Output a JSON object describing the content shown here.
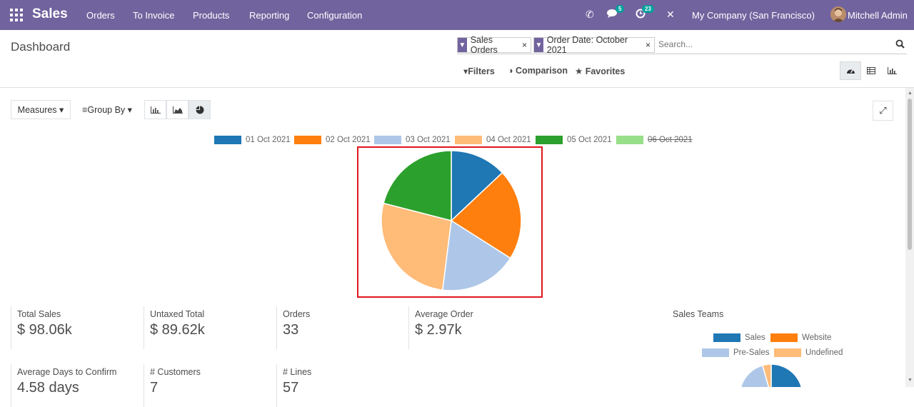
{
  "app": {
    "name": "Sales",
    "menu": [
      "Orders",
      "To Invoice",
      "Products",
      "Reporting",
      "Configuration"
    ],
    "messages_count": "5",
    "activities_count": "23",
    "company": "My Company (San Francisco)",
    "user": "Mitchell Admin"
  },
  "control_panel": {
    "title": "Dashboard",
    "facets": [
      "Sales Orders",
      "Order Date: October 2021"
    ],
    "search_placeholder": "Search...",
    "filters_label": "Filters",
    "comparison_label": "Comparison",
    "favorites_label": "Favorites"
  },
  "toolbar": {
    "measures_label": "Measures",
    "group_by_label": "Group By"
  },
  "colors": {
    "navbar": "#71639e",
    "highlight_frame": "#e0161d",
    "accent": "#00a09d"
  },
  "chart_data": [
    {
      "type": "pie",
      "legend_position": "top",
      "categories": [
        "01 Oct 2021",
        "02 Oct 2021",
        "03 Oct 2021",
        "04 Oct 2021",
        "05 Oct 2021",
        "06 Oct 2021"
      ],
      "values": [
        13,
        21,
        18,
        27,
        21,
        0
      ],
      "hidden": [
        false,
        false,
        false,
        false,
        false,
        true
      ],
      "colors": [
        "#1f77b4",
        "#ff7f0e",
        "#aec7e8",
        "#ffbb78",
        "#2ca02c",
        "#98df8a"
      ]
    },
    {
      "type": "pie",
      "title": "Sales Teams",
      "legend_position": "top",
      "categories": [
        "Sales",
        "Website",
        "Pre-Sales",
        "Undefined"
      ],
      "values": [
        36,
        0,
        28,
        3
      ],
      "colors": [
        "#1f77b4",
        "#ff7f0e",
        "#aec7e8",
        "#ffbb78"
      ]
    }
  ],
  "kpis": [
    {
      "label": "Total Sales",
      "value": "$ 98.06k"
    },
    {
      "label": "Untaxed Total",
      "value": "$ 89.62k"
    },
    {
      "label": "Orders",
      "value": "33"
    },
    {
      "label": "Average Order",
      "value": "$ 2.97k"
    },
    {
      "label": "Average Days to Confirm",
      "value": "4.58 days"
    },
    {
      "label": "# Customers",
      "value": "7"
    },
    {
      "label": "# Lines",
      "value": "57"
    }
  ]
}
